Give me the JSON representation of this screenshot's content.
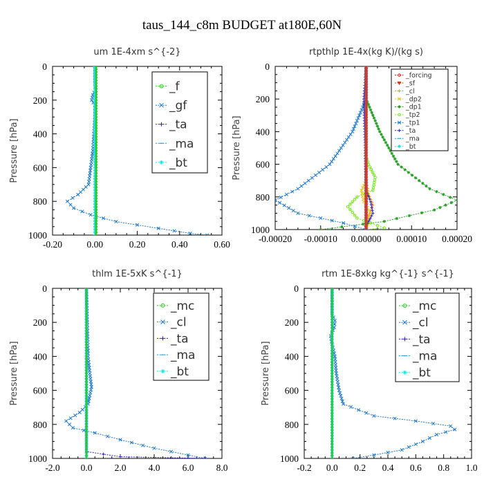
{
  "figure_title": "taus_144_c8m  BUDGET at180E,60N",
  "chart_data": [
    {
      "type": "line",
      "title": "um   1E-4xm s^{-2}",
      "ylabel": "Pressure [hPa]",
      "xlim": [
        -0.2,
        0.6
      ],
      "ylim": [
        1000,
        0
      ],
      "xticks": [
        -0.2,
        0.0,
        0.2,
        0.4,
        0.6
      ],
      "xtick_labels": [
        "-0.20",
        "0.00",
        "0.20",
        "0.40",
        "0.60"
      ],
      "yticks": [
        0,
        200,
        400,
        600,
        800,
        1000
      ],
      "ytick_labels": [
        "0",
        "200",
        "400",
        "600",
        "800",
        "1000"
      ],
      "legend": "top-right",
      "series": [
        {
          "name": "_f",
          "color": "#22c81e",
          "marker": "o",
          "points": [
            [
              0.005,
              0
            ],
            [
              0.005,
              250
            ],
            [
              0.005,
              500
            ],
            [
              0.005,
              750
            ],
            [
              0.005,
              1000
            ]
          ]
        },
        {
          "name": "_gf",
          "color": "#1e78c8",
          "marker": "x",
          "points": [
            [
              0.0,
              0
            ],
            [
              0.0,
              100
            ],
            [
              0.002,
              140
            ],
            [
              -0.01,
              170
            ],
            [
              -0.015,
              200
            ],
            [
              0.0,
              230
            ],
            [
              0.0,
              300
            ],
            [
              -0.005,
              400
            ],
            [
              -0.01,
              500
            ],
            [
              -0.02,
              600
            ],
            [
              -0.03,
              700
            ],
            [
              -0.08,
              760
            ],
            [
              -0.13,
              800
            ],
            [
              -0.1,
              840
            ],
            [
              -0.02,
              880
            ],
            [
              0.1,
              920
            ],
            [
              0.3,
              960
            ],
            [
              0.45,
              990
            ],
            [
              0.53,
              1000
            ]
          ]
        },
        {
          "name": "_ta",
          "color": "#3a1fc9",
          "marker": "+",
          "points": [
            [
              0.0,
              0
            ],
            [
              0.0,
              500
            ],
            [
              0.0,
              1000
            ]
          ]
        },
        {
          "name": "_ma",
          "color": "#1a9bd7",
          "marker": "_",
          "points": [
            [
              0.0,
              0
            ],
            [
              0.0,
              500
            ],
            [
              0.0,
              1000
            ]
          ]
        },
        {
          "name": "_bt",
          "color": "#1ee6e6",
          "marker": "*",
          "points": [
            [
              0.0,
              0
            ],
            [
              0.0,
              500
            ],
            [
              0.0,
              1000
            ]
          ]
        }
      ]
    },
    {
      "type": "line",
      "title": "rtpthlp   1E-4x(kg K)/(kg s)",
      "ylabel": "Pressure [hPa]",
      "xlim": [
        -0.0002,
        0.0002
      ],
      "ylim": [
        1000,
        0
      ],
      "xticks": [
        -0.0002,
        -0.0001,
        0.0,
        0.0001,
        0.0002
      ],
      "xtick_labels": [
        "-0.00020",
        "-0.00010",
        "0.00000",
        "0.00010",
        "0.00020"
      ],
      "yticks": [
        0,
        200,
        400,
        600,
        800,
        1000
      ],
      "ytick_labels": [
        "0",
        "200",
        "400",
        "600",
        "800",
        "1000"
      ],
      "legend": "top-right",
      "series": [
        {
          "name": "_forcing",
          "color": "#e01e1e",
          "marker": "o",
          "points": [
            [
              0.0,
              0
            ],
            [
              0.0,
              1000
            ]
          ]
        },
        {
          "name": "_sf",
          "color": "#d23c1e",
          "marker": "v",
          "points": [
            [
              0.0,
              0
            ],
            [
              0.0,
              1000
            ]
          ]
        },
        {
          "name": "_cl",
          "color": "#ff8c1e",
          "marker": "+",
          "points": [
            [
              0.0,
              0
            ],
            [
              0.0,
              700
            ],
            [
              5e-06,
              780
            ],
            [
              1.5e-05,
              850
            ],
            [
              5e-06,
              920
            ],
            [
              0.0,
              1000
            ]
          ]
        },
        {
          "name": "_dp2",
          "color": "#e6c81e",
          "marker": "x",
          "points": [
            [
              0.0,
              0
            ],
            [
              0.0,
              700
            ],
            [
              -1e-05,
              760
            ],
            [
              -5e-06,
              830
            ],
            [
              1e-05,
              900
            ],
            [
              0.0,
              1000
            ]
          ]
        },
        {
          "name": "_dp1",
          "color": "#2aa02a",
          "marker": "*",
          "points": [
            [
              0.0,
              0
            ],
            [
              0.0,
              200
            ],
            [
              3e-05,
              400
            ],
            [
              7e-05,
              600
            ],
            [
              0.00014,
              750
            ],
            [
              0.0002,
              820
            ],
            [
              0.00015,
              880
            ],
            [
              4e-05,
              950
            ],
            [
              -0.0001,
              1000
            ]
          ]
        },
        {
          "name": "_tp2",
          "color": "#78e61e",
          "marker": "o",
          "points": [
            [
              0.0,
              0
            ],
            [
              0.0,
              550
            ],
            [
              5e-06,
              600
            ],
            [
              2e-05,
              680
            ],
            [
              1.5e-05,
              760
            ],
            [
              -2e-05,
              800
            ],
            [
              -4e-05,
              860
            ],
            [
              -2e-05,
              930
            ],
            [
              4e-05,
              990
            ],
            [
              0.0,
              1000
            ]
          ]
        },
        {
          "name": "_tp1",
          "color": "#1e78c8",
          "marker": "x",
          "points": [
            [
              0.0,
              0
            ],
            [
              0.0,
              200
            ],
            [
              -3e-05,
              400
            ],
            [
              -8e-05,
              600
            ],
            [
              -0.00015,
              750
            ],
            [
              -0.0002,
              820
            ],
            [
              -0.00015,
              900
            ],
            [
              -5e-05,
              960
            ],
            [
              0.0,
              1000
            ]
          ]
        },
        {
          "name": "_ta",
          "color": "#2828c8",
          "marker": "+",
          "points": [
            [
              0.0,
              0
            ],
            [
              -5e-06,
              200
            ],
            [
              -2e-06,
              500
            ],
            [
              0.0,
              760
            ],
            [
              1e-05,
              830
            ],
            [
              1.5e-05,
              900
            ],
            [
              0.0,
              980
            ],
            [
              0.0,
              1000
            ]
          ]
        },
        {
          "name": "_ma",
          "color": "#1a9bd7",
          "marker": "_",
          "points": [
            [
              0.0,
              0
            ],
            [
              0.0,
              1000
            ]
          ]
        },
        {
          "name": "_bt",
          "color": "#1ee6e6",
          "marker": "*",
          "points": [
            [
              0.0,
              0
            ],
            [
              0.0,
              1000
            ]
          ]
        }
      ]
    },
    {
      "type": "line",
      "title": "thlm   1E-5xK s^{-1}",
      "ylabel": "Pressure [hPa]",
      "xlim": [
        -2.0,
        8.0
      ],
      "ylim": [
        1000,
        0
      ],
      "xticks": [
        -2.0,
        0.0,
        2.0,
        4.0,
        6.0,
        8.0
      ],
      "xtick_labels": [
        "-2.0",
        "0.0",
        "2.0",
        "4.0",
        "6.0",
        "8.0"
      ],
      "yticks": [
        0,
        200,
        400,
        600,
        800,
        1000
      ],
      "ytick_labels": [
        "0",
        "200",
        "400",
        "600",
        "800",
        "1000"
      ],
      "legend": "top-right",
      "series": [
        {
          "name": "_mc",
          "color": "#22c81e",
          "marker": "o",
          "points": [
            [
              0.0,
              0
            ],
            [
              0.0,
              250
            ],
            [
              0.0,
              500
            ],
            [
              0.0,
              750
            ],
            [
              0.0,
              1000
            ]
          ]
        },
        {
          "name": "_cl",
          "color": "#1e78c8",
          "marker": "x",
          "points": [
            [
              0.0,
              0
            ],
            [
              0.05,
              200
            ],
            [
              0.1,
              400
            ],
            [
              0.2,
              500
            ],
            [
              0.3,
              580
            ],
            [
              0.1,
              680
            ],
            [
              -0.4,
              730
            ],
            [
              -1.2,
              780
            ],
            [
              -0.8,
              820
            ],
            [
              0.5,
              850
            ],
            [
              2.0,
              890
            ],
            [
              4.0,
              940
            ],
            [
              6.0,
              980
            ],
            [
              7.0,
              1000
            ]
          ]
        },
        {
          "name": "_ta",
          "color": "#3a1fc9",
          "marker": "+",
          "points": [
            [
              0.0,
              0
            ],
            [
              0.0,
              960
            ],
            [
              2.0,
              990
            ],
            [
              7.0,
              1000
            ]
          ]
        },
        {
          "name": "_ma",
          "color": "#1a9bd7",
          "marker": "_",
          "points": [
            [
              0.0,
              0
            ],
            [
              0.0,
              1000
            ]
          ]
        },
        {
          "name": "_bt",
          "color": "#1ee6e6",
          "marker": "*",
          "points": [
            [
              0.0,
              0
            ],
            [
              0.0,
              1000
            ]
          ]
        }
      ]
    },
    {
      "type": "line",
      "title": "rtm   1E-8xkg kg^{-1} s^{-1}",
      "ylabel": "Pressure [hPa]",
      "xlim": [
        -0.2,
        1.0
      ],
      "ylim": [
        1000,
        0
      ],
      "xticks": [
        -0.2,
        0.0,
        0.2,
        0.4,
        0.6,
        0.8,
        1.0
      ],
      "xtick_labels": [
        "-0.2",
        "0.0",
        "0.2",
        "0.4",
        "0.6",
        "0.8",
        "1.0"
      ],
      "yticks": [
        0,
        200,
        400,
        600,
        800,
        1000
      ],
      "ytick_labels": [
        "0",
        "200",
        "400",
        "600",
        "800",
        "1000"
      ],
      "legend": "top-right",
      "series": [
        {
          "name": "_mc",
          "color": "#22c81e",
          "marker": "o",
          "points": [
            [
              0.0,
              0
            ],
            [
              0.0,
              250
            ],
            [
              0.0,
              500
            ],
            [
              0.0,
              750
            ],
            [
              0.0,
              1000
            ]
          ]
        },
        {
          "name": "_cl",
          "color": "#1e78c8",
          "marker": "x",
          "points": [
            [
              0.0,
              0
            ],
            [
              0.0,
              150
            ],
            [
              0.02,
              190
            ],
            [
              0.015,
              230
            ],
            [
              -0.01,
              280
            ],
            [
              0.0,
              330
            ],
            [
              0.02,
              400
            ],
            [
              0.03,
              500
            ],
            [
              0.05,
              600
            ],
            [
              0.08,
              680
            ],
            [
              0.3,
              750
            ],
            [
              0.6,
              780
            ],
            [
              0.85,
              810
            ],
            [
              0.88,
              830
            ],
            [
              0.75,
              860
            ],
            [
              0.65,
              900
            ],
            [
              0.5,
              950
            ],
            [
              0.3,
              980
            ],
            [
              0.15,
              1000
            ]
          ]
        },
        {
          "name": "_ta",
          "color": "#3a1fc9",
          "marker": "+",
          "points": [
            [
              0.0,
              0
            ],
            [
              0.0,
              1000
            ]
          ]
        },
        {
          "name": "_ma",
          "color": "#1a9bd7",
          "marker": "_",
          "points": [
            [
              0.0,
              0
            ],
            [
              0.0,
              1000
            ]
          ]
        },
        {
          "name": "_bt",
          "color": "#1ee6e6",
          "marker": "*",
          "points": [
            [
              0.0,
              0
            ],
            [
              0.0,
              1000
            ]
          ]
        }
      ]
    }
  ]
}
